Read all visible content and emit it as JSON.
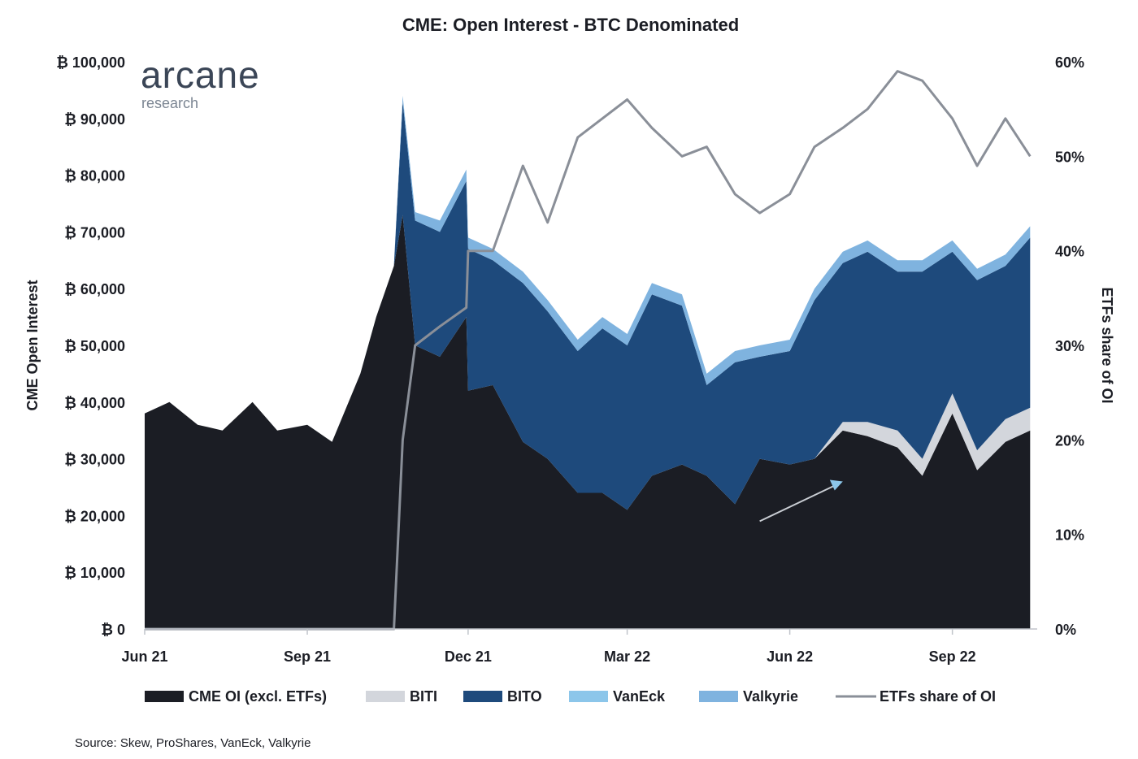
{
  "logo": {
    "main": "arcane",
    "sub": "research"
  },
  "source": "Source: Skew, ProShares, VanEck, Valkyrie",
  "chart_data": {
    "type": "area",
    "title": "CME: Open Interest - BTC Denominated",
    "ylabel": "CME Open Interest",
    "y2label": "ETFs share of OI",
    "ylim": [
      0,
      100000
    ],
    "y2lim": [
      0,
      60
    ],
    "yticks": [
      "₿ 0",
      "₿ 10,000",
      "₿ 20,000",
      "₿ 30,000",
      "₿ 40,000",
      "₿ 50,000",
      "₿ 60,000",
      "₿ 70,000",
      "₿ 80,000",
      "₿ 90,000",
      "₿ 100,000"
    ],
    "y2ticks": [
      "0%",
      "10%",
      "20%",
      "30%",
      "40%",
      "50%",
      "60%"
    ],
    "xticks": [
      "Jun 21",
      "Sep 21",
      "Dec 21",
      "Mar 22",
      "Jun 22",
      "Sep 22"
    ],
    "x": [
      "2021-06-01",
      "2021-06-15",
      "2021-07-01",
      "2021-07-15",
      "2021-08-01",
      "2021-08-15",
      "2021-09-01",
      "2021-09-15",
      "2021-10-01",
      "2021-10-10",
      "2021-10-20",
      "2021-10-25",
      "2021-11-01",
      "2021-11-15",
      "2021-11-30",
      "2021-12-01",
      "2021-12-15",
      "2022-01-01",
      "2022-01-15",
      "2022-02-01",
      "2022-02-15",
      "2022-03-01",
      "2022-03-15",
      "2022-04-01",
      "2022-04-15",
      "2022-05-01",
      "2022-05-15",
      "2022-06-01",
      "2022-06-15",
      "2022-07-01",
      "2022-07-15",
      "2022-08-01",
      "2022-08-15",
      "2022-09-01",
      "2022-09-15",
      "2022-10-01",
      "2022-10-15"
    ],
    "series": [
      {
        "name": "CME OI (excl. ETFs)",
        "color": "#1b1d24",
        "values": [
          38000,
          40000,
          36000,
          35000,
          40000,
          35000,
          36000,
          33000,
          45000,
          55000,
          64000,
          73000,
          50000,
          48000,
          55000,
          42000,
          43000,
          33000,
          30000,
          24000,
          24000,
          21000,
          27000,
          29000,
          27000,
          22000,
          30000,
          29000,
          30000,
          35000,
          34000,
          32000,
          27000,
          38000,
          28000,
          33000,
          35000
        ]
      },
      {
        "name": "BITI",
        "color": "#d3d6dc",
        "values": [
          0,
          0,
          0,
          0,
          0,
          0,
          0,
          0,
          0,
          0,
          0,
          0,
          0,
          0,
          0,
          0,
          0,
          0,
          0,
          0,
          0,
          0,
          0,
          0,
          0,
          0,
          0,
          0,
          0,
          1500,
          2500,
          3000,
          3000,
          3500,
          3500,
          4000,
          4000
        ]
      },
      {
        "name": "BITO",
        "color": "#1e4a7c",
        "values": [
          0,
          0,
          0,
          0,
          0,
          0,
          0,
          0,
          0,
          0,
          0,
          20000,
          22000,
          22000,
          24000,
          25000,
          22000,
          28000,
          26000,
          25000,
          29000,
          29000,
          32000,
          28000,
          16000,
          25000,
          18000,
          20000,
          28000,
          28000,
          30000,
          28000,
          33000,
          25000,
          30000,
          27000,
          30000
        ]
      },
      {
        "name": "VanEck",
        "color": "#8cc6ea",
        "values": [
          0,
          0,
          0,
          0,
          0,
          0,
          0,
          0,
          0,
          0,
          0,
          0,
          0,
          0,
          0,
          0,
          0,
          0,
          0,
          0,
          0,
          0,
          0,
          0,
          0,
          0,
          0,
          0,
          0,
          0,
          0,
          0,
          0,
          0,
          0,
          0,
          0
        ]
      },
      {
        "name": "Valkyrie",
        "color": "#7fb3df",
        "values": [
          0,
          0,
          0,
          0,
          0,
          0,
          0,
          0,
          0,
          0,
          0,
          1000,
          1500,
          2000,
          2000,
          2000,
          2000,
          2000,
          2000,
          2000,
          2000,
          2000,
          2000,
          2000,
          2000,
          2000,
          2000,
          2000,
          2000,
          2000,
          2000,
          2000,
          2000,
          2000,
          2000,
          2000,
          2000
        ]
      },
      {
        "name": "ETFs share of OI",
        "color": "#8a8f98",
        "axis": "right",
        "type": "line",
        "values": [
          0,
          0,
          0,
          0,
          0,
          0,
          0,
          0,
          0,
          0,
          0,
          20,
          30,
          32,
          34,
          40,
          40,
          49,
          43,
          52,
          54,
          56,
          53,
          50,
          51,
          46,
          44,
          46,
          51,
          53,
          55,
          59,
          58,
          54,
          49,
          54,
          50
        ]
      }
    ],
    "annotation": {
      "type": "arrow",
      "color": "#8cc6ea"
    },
    "legend_placement": "bottom",
    "grid": false
  }
}
